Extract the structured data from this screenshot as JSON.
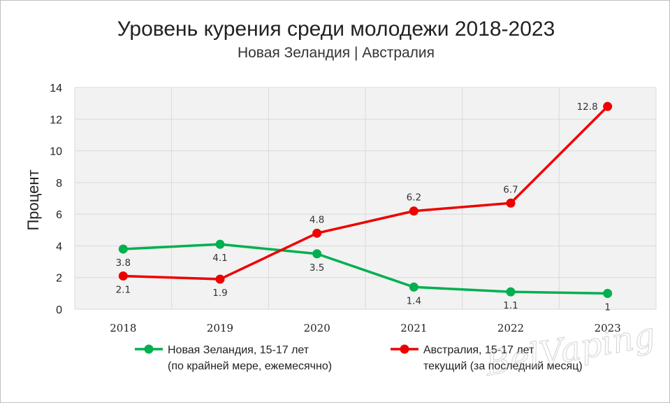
{
  "chart_data": {
    "type": "line",
    "title": "Уровень курения среди молодежи 2018-2023",
    "subtitle": "Новая Зеландия | Австралия",
    "ylabel": "Процент",
    "xlabel": "",
    "categories": [
      "2018",
      "2019",
      "2020",
      "2021",
      "2022",
      "2023"
    ],
    "ylim": [
      0,
      14
    ],
    "yticks": [
      0,
      2,
      4,
      6,
      8,
      10,
      12,
      14
    ],
    "grid": true,
    "legend_position": "bottom",
    "series": [
      {
        "name_line1": "Новая Зеландия, 15-17 лет",
        "name_line2": "(по крайней мере, ежемесячно)",
        "color": "#00b050",
        "values": [
          3.8,
          4.1,
          3.5,
          1.4,
          1.1,
          1
        ],
        "labels": [
          "3.8",
          "4.1",
          "3.5",
          "1.4",
          "1.1",
          "1"
        ],
        "label_position": "below"
      },
      {
        "name_line1": "Австралия, 15-17 лет",
        "name_line2": "текущий (за последний месяц)",
        "color": "#ee0000",
        "values": [
          2.1,
          1.9,
          4.8,
          6.2,
          6.7,
          12.8
        ],
        "labels": [
          "2.1",
          "1.9",
          "4.8",
          "6.2",
          "6.7",
          "12.8"
        ],
        "label_position": [
          "below",
          "below",
          "above",
          "above",
          "above",
          "left"
        ]
      }
    ]
  },
  "watermark": "BelVaping",
  "colors": {
    "plot_background": "#f2f2f2",
    "gridline": "#d9d9d9"
  }
}
